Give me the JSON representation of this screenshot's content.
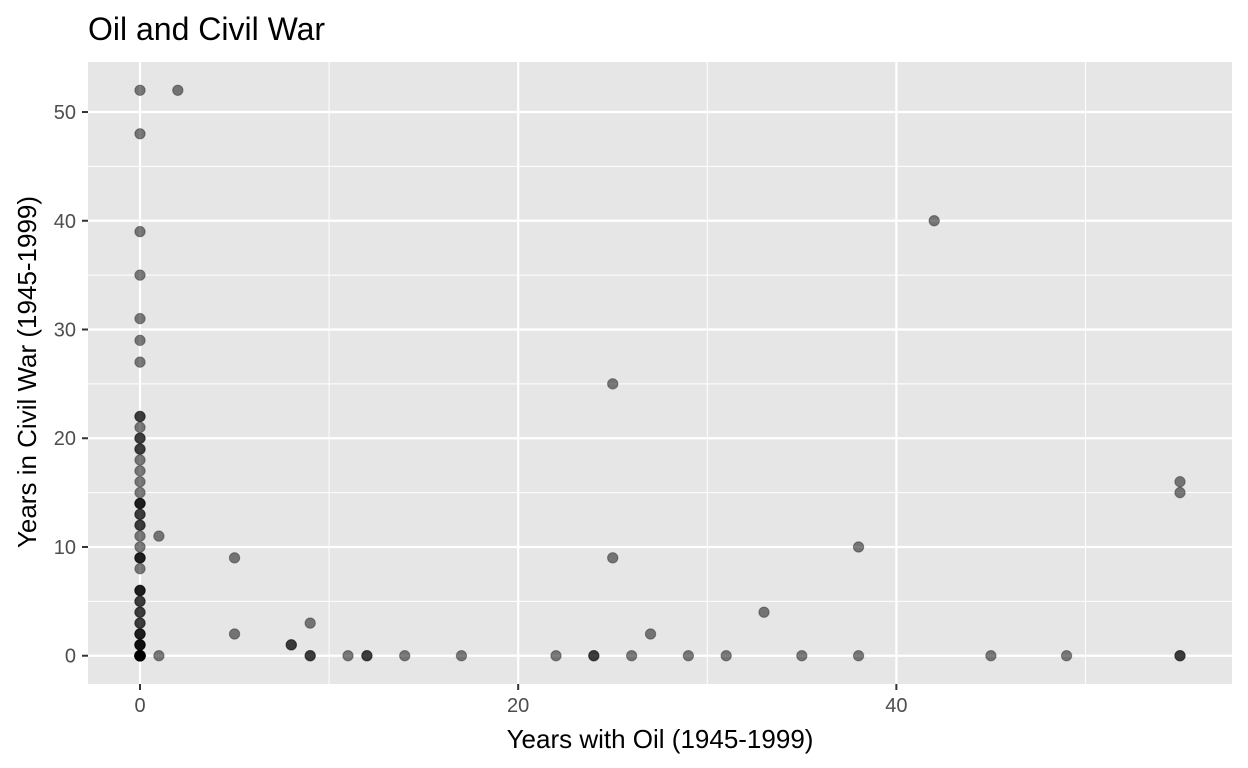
{
  "chart_data": {
    "type": "scatter",
    "title": "Oil and Civil War",
    "xlabel": "Years with Oil (1945-1999)",
    "ylabel": "Years in Civil War (1945-1999)",
    "xlim": [
      -2.75,
      57.75
    ],
    "ylim": [
      -2.6,
      54.6
    ],
    "x_ticks": [
      0,
      20,
      40
    ],
    "y_ticks": [
      0,
      10,
      20,
      30,
      40,
      50
    ],
    "x_minor_ticks": [
      10,
      30,
      50
    ],
    "y_minor_ticks": [
      5,
      15,
      25,
      35,
      45
    ],
    "grid": true,
    "panel_color": "#e6e6e6",
    "grid_color": "#ffffff",
    "point_color": "#000000",
    "point_alpha": 0.5,
    "x": [
      0,
      0,
      0,
      0,
      0,
      0,
      0,
      0,
      0,
      0,
      0,
      0,
      0,
      0,
      0,
      0,
      0,
      0,
      0,
      0,
      0,
      0,
      0,
      0,
      0,
      0,
      0,
      0,
      0,
      0,
      0,
      0,
      0,
      0,
      0,
      0,
      0,
      0,
      0,
      0,
      0,
      0,
      0,
      0,
      0,
      0,
      0,
      0,
      0,
      0,
      0,
      0,
      0,
      0,
      0,
      0,
      0,
      0,
      0,
      0,
      0,
      0,
      2,
      1,
      1,
      5,
      5,
      8,
      8,
      9,
      9,
      9,
      11,
      12,
      12,
      14,
      17,
      22,
      24,
      24,
      25,
      25,
      26,
      27,
      29,
      31,
      33,
      35,
      38,
      38,
      42,
      45,
      49,
      55,
      55,
      55,
      55
    ],
    "y": [
      52,
      48,
      39,
      35,
      31,
      29,
      27,
      22,
      22,
      21,
      20,
      20,
      19,
      19,
      18,
      17,
      16,
      15,
      14,
      14,
      14,
      13,
      13,
      12,
      12,
      11,
      10,
      9,
      9,
      9,
      8,
      6,
      6,
      6,
      5,
      5,
      4,
      4,
      3,
      3,
      2,
      2,
      2,
      1,
      1,
      1,
      1,
      0,
      0,
      0,
      0,
      0,
      0,
      0,
      0,
      0,
      0,
      0,
      0,
      0,
      0,
      0,
      52,
      11,
      0,
      9,
      2,
      1,
      1,
      3,
      0,
      0,
      0,
      0,
      0,
      0,
      0,
      0,
      0,
      0,
      25,
      9,
      0,
      2,
      0,
      0,
      4,
      0,
      10,
      0,
      40,
      0,
      0,
      16,
      15,
      0,
      0
    ]
  }
}
